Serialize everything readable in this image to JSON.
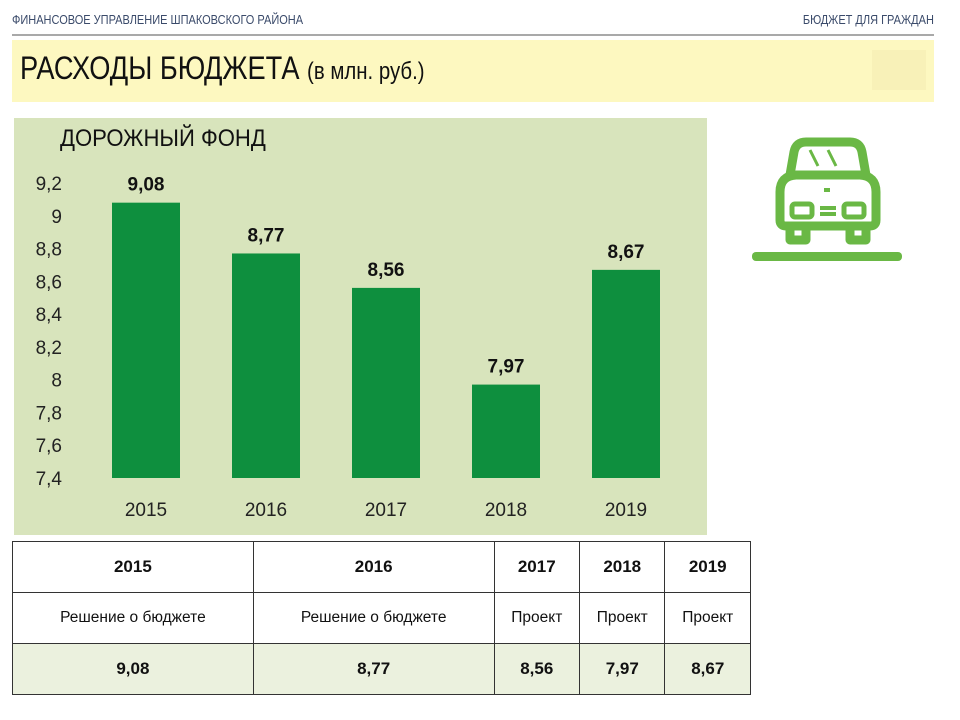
{
  "header": {
    "org": "ФИНАНСОВОЕ УПРАВЛЕНИЕ ШПАКОВСКОГО РАЙОНА",
    "tag": "БЮДЖЕТ ДЛЯ ГРАЖДАН",
    "title": "РАСХОДЫ БЮДЖЕТА",
    "units": "(в млн. руб.)"
  },
  "colors": {
    "bar": "#0e8f3e",
    "panel": "#d8e4bc",
    "icon": "#6ab845"
  },
  "icon": "car-icon",
  "chart_data": {
    "type": "bar",
    "title": "ДОРОЖНЫЙ ФОНД",
    "categories": [
      "2015",
      "2016",
      "2017",
      "2018",
      "2019"
    ],
    "values": [
      9.08,
      8.77,
      8.56,
      7.97,
      8.67
    ],
    "value_labels": [
      "9,08",
      "8,77",
      "8,56",
      "7,97",
      "8,67"
    ],
    "ylim": [
      7.4,
      9.2
    ],
    "yticks": [
      "7,4",
      "7,6",
      "7,8",
      "8",
      "8,2",
      "8,4",
      "8,6",
      "8,8",
      "9",
      "9,2"
    ],
    "xlabel": "",
    "ylabel": "",
    "grid": false
  },
  "table": {
    "years": [
      "2015",
      "2016",
      "2017",
      "2018",
      "2019"
    ],
    "types": [
      "Решение о бюджете",
      "Решение о бюджете",
      "Проект",
      "Проект",
      "Проект"
    ],
    "values": [
      "9,08",
      "8,77",
      "8,56",
      "7,97",
      "8,67"
    ]
  }
}
